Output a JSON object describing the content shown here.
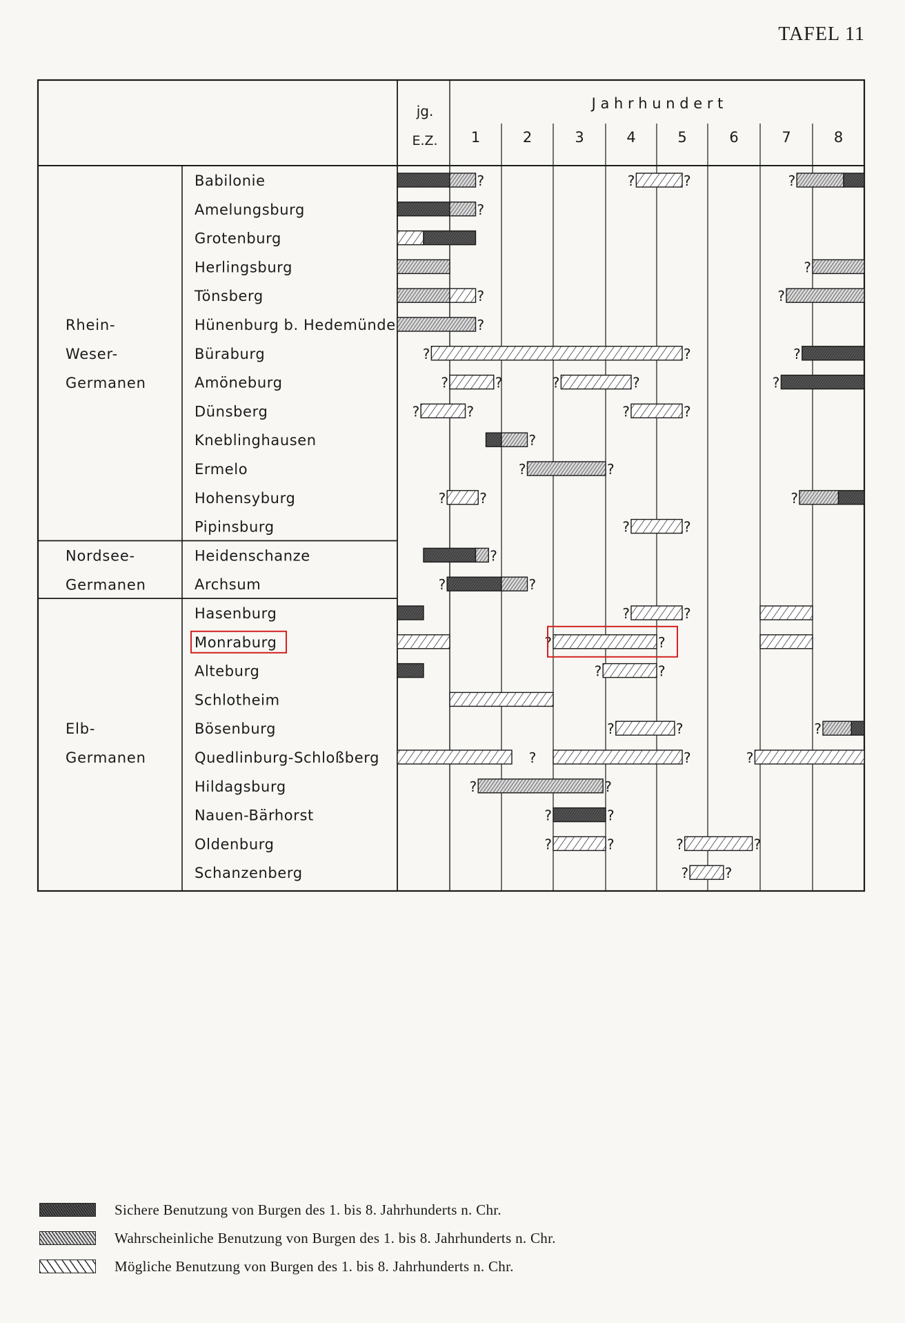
{
  "plate_label": "TAFEL 11",
  "chart_data": {
    "type": "timeline-bar",
    "title": "",
    "header": {
      "first_column": "jg. E.Z.",
      "first_column_lines": [
        "jg.",
        "E.Z."
      ],
      "century_label": "J a h r h u n d e r t",
      "centuries": [
        "1",
        "2",
        "3",
        "4",
        "5",
        "6",
        "7",
        "8"
      ]
    },
    "x_unit": "year AD (jg. E.Z. column = -100 to 0; century n = (n-1)*100 to n*100)",
    "xlim": [
      -100,
      800
    ],
    "segment_types": {
      "sure": {
        "color": "#4a4a4a"
      },
      "probable": {
        "color": "#9a9a9a"
      },
      "possible": {
        "color": "#ffffff"
      }
    },
    "groups": [
      {
        "lines": [
          "Rhein-",
          "Weser-",
          "Germanen"
        ],
        "first_row": 0,
        "last_row": 12
      },
      {
        "lines": [
          "Nordsee-",
          "Germanen"
        ],
        "first_row": 13,
        "last_row": 14
      },
      {
        "lines": [
          "Elb-",
          "Germanen"
        ],
        "first_row": 15,
        "last_row": 24
      }
    ],
    "rows": [
      {
        "name": "Babilonie",
        "bars": [
          {
            "segments": [
              {
                "from": -100,
                "to": 0,
                "type": "sure"
              },
              {
                "from": 0,
                "to": 50,
                "type": "probable"
              }
            ],
            "q_left": false,
            "q_right": true
          },
          {
            "segments": [
              {
                "from": 360,
                "to": 450,
                "type": "possible"
              }
            ],
            "q_left": true,
            "q_right": true
          },
          {
            "segments": [
              {
                "from": 670,
                "to": 760,
                "type": "probable"
              },
              {
                "from": 760,
                "to": 800,
                "type": "sure"
              }
            ],
            "q_left": true,
            "q_right": false
          }
        ]
      },
      {
        "name": "Amelungsburg",
        "bars": [
          {
            "segments": [
              {
                "from": -100,
                "to": 0,
                "type": "sure"
              },
              {
                "from": 0,
                "to": 50,
                "type": "probable"
              }
            ],
            "q_left": false,
            "q_right": true
          }
        ]
      },
      {
        "name": "Grotenburg",
        "bars": [
          {
            "segments": [
              {
                "from": -100,
                "to": -50,
                "type": "possible"
              },
              {
                "from": -50,
                "to": 50,
                "type": "sure"
              }
            ],
            "q_left": false,
            "q_right": false
          }
        ]
      },
      {
        "name": "Herlingsburg",
        "bars": [
          {
            "segments": [
              {
                "from": -100,
                "to": 0,
                "type": "probable"
              }
            ],
            "q_left": false,
            "q_right": false
          },
          {
            "segments": [
              {
                "from": 700,
                "to": 800,
                "type": "probable"
              }
            ],
            "q_left": true,
            "q_right": false
          }
        ]
      },
      {
        "name": "Tönsberg",
        "bars": [
          {
            "segments": [
              {
                "from": -100,
                "to": 0,
                "type": "probable"
              },
              {
                "from": 0,
                "to": 50,
                "type": "possible"
              }
            ],
            "q_left": false,
            "q_right": true
          },
          {
            "segments": [
              {
                "from": 650,
                "to": 800,
                "type": "probable"
              }
            ],
            "q_left": true,
            "q_right": false
          }
        ]
      },
      {
        "name": "Hünenburg b. Hedemünden",
        "bars": [
          {
            "segments": [
              {
                "from": -100,
                "to": 50,
                "type": "probable"
              }
            ],
            "q_left": false,
            "q_right": true
          }
        ]
      },
      {
        "name": "Büraburg",
        "bars": [
          {
            "segments": [
              {
                "from": -35,
                "to": 450,
                "type": "possible"
              }
            ],
            "q_left": true,
            "q_right": true
          },
          {
            "segments": [
              {
                "from": 680,
                "to": 800,
                "type": "sure"
              }
            ],
            "q_left": true,
            "q_right": false
          }
        ]
      },
      {
        "name": "Amöneburg",
        "bars": [
          {
            "segments": [
              {
                "from": 0,
                "to": 85,
                "type": "possible"
              }
            ],
            "q_left": true,
            "q_right": true
          },
          {
            "segments": [
              {
                "from": 215,
                "to": 350,
                "type": "possible"
              }
            ],
            "q_left": true,
            "q_right": true
          },
          {
            "segments": [
              {
                "from": 640,
                "to": 800,
                "type": "sure"
              }
            ],
            "q_left": true,
            "q_right": false
          }
        ]
      },
      {
        "name": "Dünsberg",
        "bars": [
          {
            "segments": [
              {
                "from": -55,
                "to": 30,
                "type": "possible"
              }
            ],
            "q_left": true,
            "q_right": true
          },
          {
            "segments": [
              {
                "from": 350,
                "to": 450,
                "type": "possible"
              }
            ],
            "q_left": true,
            "q_right": true
          }
        ]
      },
      {
        "name": "Kneblinghausen",
        "bars": [
          {
            "segments": [
              {
                "from": 70,
                "to": 100,
                "type": "sure"
              },
              {
                "from": 100,
                "to": 150,
                "type": "probable"
              }
            ],
            "q_left": false,
            "q_right": true
          }
        ]
      },
      {
        "name": "Ermelo",
        "bars": [
          {
            "segments": [
              {
                "from": 150,
                "to": 300,
                "type": "probable"
              }
            ],
            "q_left": true,
            "q_right": true
          }
        ]
      },
      {
        "name": "Hohensyburg",
        "bars": [
          {
            "segments": [
              {
                "from": -5,
                "to": 55,
                "type": "possible"
              }
            ],
            "q_left": true,
            "q_right": true
          },
          {
            "segments": [
              {
                "from": 675,
                "to": 750,
                "type": "probable"
              },
              {
                "from": 750,
                "to": 800,
                "type": "sure"
              }
            ],
            "q_left": true,
            "q_right": false
          }
        ]
      },
      {
        "name": "Pipinsburg",
        "bars": [
          {
            "segments": [
              {
                "from": 350,
                "to": 450,
                "type": "possible"
              }
            ],
            "q_left": true,
            "q_right": true
          }
        ]
      },
      {
        "name": "Heidenschanze",
        "bars": [
          {
            "segments": [
              {
                "from": -50,
                "to": 50,
                "type": "sure"
              },
              {
                "from": 50,
                "to": 75,
                "type": "probable"
              }
            ],
            "q_left": false,
            "q_right": true
          }
        ]
      },
      {
        "name": "Archsum",
        "bars": [
          {
            "segments": [
              {
                "from": -5,
                "to": 100,
                "type": "sure"
              },
              {
                "from": 100,
                "to": 150,
                "type": "probable"
              }
            ],
            "q_left": true,
            "q_right": true
          }
        ]
      },
      {
        "name": "Hasenburg",
        "bars": [
          {
            "segments": [
              {
                "from": -100,
                "to": -50,
                "type": "sure"
              }
            ],
            "q_left": false,
            "q_right": false
          },
          {
            "segments": [
              {
                "from": 350,
                "to": 450,
                "type": "possible"
              }
            ],
            "q_left": true,
            "q_right": true
          },
          {
            "segments": [
              {
                "from": 600,
                "to": 700,
                "type": "possible"
              }
            ],
            "q_left": false,
            "q_right": false
          }
        ]
      },
      {
        "name": "Monraburg",
        "highlight": true,
        "bars": [
          {
            "segments": [
              {
                "from": -100,
                "to": 0,
                "type": "possible"
              }
            ],
            "q_left": false,
            "q_right": false
          },
          {
            "segments": [
              {
                "from": 200,
                "to": 400,
                "type": "possible"
              }
            ],
            "q_left": true,
            "q_right": true,
            "highlight": true
          },
          {
            "segments": [
              {
                "from": 600,
                "to": 700,
                "type": "possible"
              }
            ],
            "q_left": false,
            "q_right": false
          }
        ]
      },
      {
        "name": "Alteburg",
        "bars": [
          {
            "segments": [
              {
                "from": -100,
                "to": -50,
                "type": "sure"
              }
            ],
            "q_left": false,
            "q_right": false
          },
          {
            "segments": [
              {
                "from": 295,
                "to": 400,
                "type": "possible"
              }
            ],
            "q_left": true,
            "q_right": true
          }
        ]
      },
      {
        "name": "Schlotheim",
        "bars": [
          {
            "segments": [
              {
                "from": 0,
                "to": 200,
                "type": "possible"
              }
            ],
            "q_left": false,
            "q_right": false
          }
        ]
      },
      {
        "name": "Bösenburg",
        "bars": [
          {
            "segments": [
              {
                "from": 320,
                "to": 435,
                "type": "possible"
              }
            ],
            "q_left": true,
            "q_right": true
          },
          {
            "segments": [
              {
                "from": 720,
                "to": 775,
                "type": "probable"
              },
              {
                "from": 775,
                "to": 800,
                "type": "sure"
              }
            ],
            "q_left": true,
            "q_right": false
          }
        ]
      },
      {
        "name": "Quedlinburg-Schloßberg",
        "q_only": [
          160
        ],
        "bars": [
          {
            "segments": [
              {
                "from": -100,
                "to": 120,
                "type": "possible"
              }
            ],
            "q_left": false,
            "q_right": false
          },
          {
            "segments": [
              {
                "from": 200,
                "to": 450,
                "type": "possible"
              }
            ],
            "q_left": false,
            "q_right": true
          },
          {
            "segments": [
              {
                "from": 590,
                "to": 800,
                "type": "possible"
              }
            ],
            "q_left": true,
            "q_right": false
          }
        ]
      },
      {
        "name": "Hildagsburg",
        "bars": [
          {
            "segments": [
              {
                "from": 55,
                "to": 295,
                "type": "probable"
              }
            ],
            "q_left": true,
            "q_right": true
          }
        ]
      },
      {
        "name": "Nauen-Bärhorst",
        "bars": [
          {
            "segments": [
              {
                "from": 200,
                "to": 300,
                "type": "sure"
              }
            ],
            "q_left": true,
            "q_right": true
          }
        ]
      },
      {
        "name": "Oldenburg",
        "bars": [
          {
            "segments": [
              {
                "from": 200,
                "to": 300,
                "type": "possible"
              }
            ],
            "q_left": true,
            "q_right": true
          },
          {
            "segments": [
              {
                "from": 455,
                "to": 585,
                "type": "possible"
              }
            ],
            "q_left": true,
            "q_right": true
          }
        ]
      },
      {
        "name": "Schanzenberg",
        "bars": [
          {
            "segments": [
              {
                "from": 465,
                "to": 530,
                "type": "possible"
              }
            ],
            "q_left": true,
            "q_right": true
          }
        ]
      }
    ],
    "question_mark": "?",
    "legend": [
      {
        "type": "sure",
        "label": "Sichere Benutzung von Burgen des 1. bis 8. Jahrhunderts n. Chr."
      },
      {
        "type": "probable",
        "label": "Wahrscheinliche Benutzung von Burgen des 1. bis 8. Jahrhunderts n. Chr."
      },
      {
        "type": "possible",
        "label": "Mögliche Benutzung von Burgen des 1. bis 8. Jahrhunderts n. Chr."
      }
    ],
    "highlight_color": "#d42020"
  }
}
